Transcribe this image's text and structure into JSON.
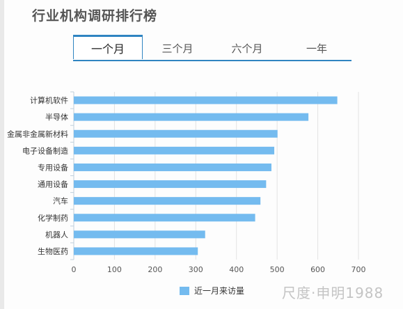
{
  "page_title": "行业机构调研排行榜",
  "tabs": [
    {
      "label": "一个月",
      "active": true
    },
    {
      "label": "三个月",
      "active": false
    },
    {
      "label": "六个月",
      "active": false
    },
    {
      "label": "一年",
      "active": false
    }
  ],
  "watermark": "尺度·申明1988",
  "colors": {
    "bar": "#74bbef",
    "tab_accent": "#2f84c1",
    "grid": "#e2e2e2"
  },
  "chart_data": {
    "type": "bar",
    "orientation": "horizontal",
    "categories": [
      "计算机软件",
      "半导体",
      "金属非金属新材料",
      "电子设备制造",
      "专用设备",
      "通用设备",
      "汽车",
      "化学制药",
      "机器人",
      "生物医药"
    ],
    "series": [
      {
        "name": "近一月来访量",
        "values": [
          648,
          577,
          501,
          493,
          486,
          473,
          459,
          446,
          323,
          305
        ]
      }
    ],
    "xlim": [
      0,
      700
    ],
    "xticks": [
      0,
      100,
      200,
      300,
      400,
      500,
      600,
      700
    ],
    "grid": true,
    "legend_position": "bottom"
  }
}
